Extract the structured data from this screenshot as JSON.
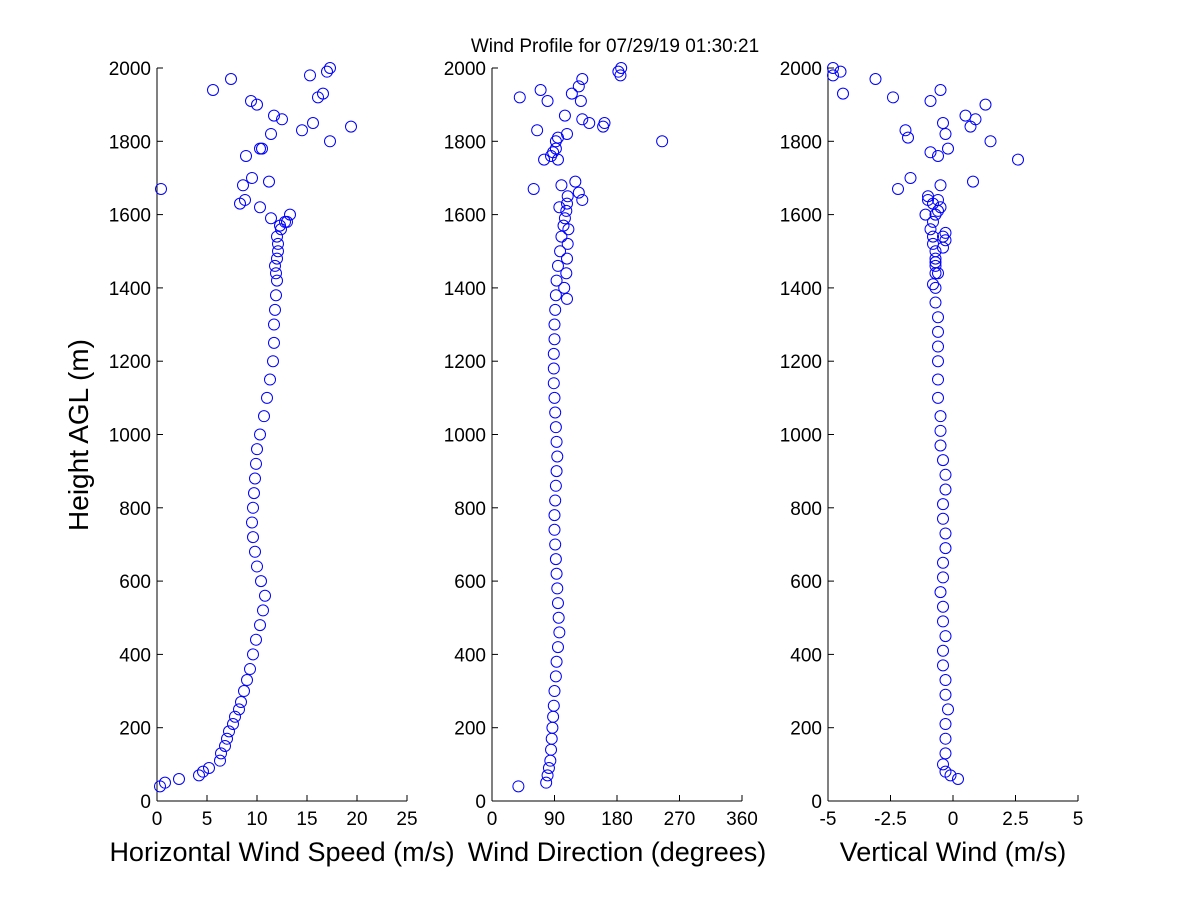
{
  "figure": {
    "title": "Wind Profile for  07/29/19 01:30:21",
    "ylabel": "Height AGL (m)"
  },
  "chart_data": [
    {
      "type": "scatter",
      "xlabel": "Horizontal Wind Speed (m/s)",
      "ylabel": "Height AGL (m)",
      "xlim": [
        0,
        25
      ],
      "ylim": [
        0,
        2000
      ],
      "xticks": [
        "0",
        "5",
        "10",
        "15",
        "20",
        "25"
      ],
      "yticks": [
        "0",
        "200",
        "400",
        "600",
        "800",
        "1000",
        "1200",
        "1400",
        "1600",
        "1800",
        "2000"
      ],
      "marker": "open-circle",
      "color": "#0000ff",
      "x": [
        0.3,
        0.8,
        2.2,
        4.2,
        4.6,
        5.2,
        6.3,
        6.4,
        6.8,
        7.0,
        7.2,
        7.6,
        7.8,
        8.2,
        8.4,
        8.7,
        9.0,
        9.3,
        9.6,
        9.9,
        10.3,
        10.6,
        10.8,
        10.4,
        10.0,
        9.8,
        9.6,
        9.5,
        9.6,
        9.7,
        9.8,
        9.9,
        10.0,
        10.3,
        10.7,
        11.0,
        11.3,
        11.6,
        11.7,
        11.7,
        11.8,
        11.9,
        12.0,
        11.9,
        11.8,
        12.0,
        12.1,
        12.1,
        12.0,
        12.4,
        13.0,
        13.3,
        12.8,
        12.3,
        11.4,
        10.3,
        8.3,
        8.8,
        8.6,
        11.2,
        9.5,
        8.9,
        10.5,
        12.5,
        11.4,
        11.7,
        10.0,
        15.6,
        19.4,
        14.5,
        17.3,
        9.4,
        10.3,
        16.1,
        16.6,
        5.6,
        7.4,
        15.3,
        17.0,
        17.3,
        0.4
      ],
      "y": [
        40,
        50,
        60,
        70,
        80,
        90,
        110,
        130,
        150,
        170,
        190,
        210,
        230,
        250,
        270,
        300,
        330,
        360,
        400,
        440,
        480,
        520,
        560,
        600,
        640,
        680,
        720,
        760,
        800,
        840,
        880,
        920,
        960,
        1000,
        1050,
        1100,
        1150,
        1200,
        1250,
        1300,
        1340,
        1380,
        1420,
        1440,
        1460,
        1480,
        1500,
        1520,
        1540,
        1560,
        1580,
        1600,
        1580,
        1570,
        1590,
        1620,
        1630,
        1640,
        1680,
        1690,
        1700,
        1760,
        1780,
        1860,
        1820,
        1870,
        1900,
        1850,
        1840,
        1830,
        1800,
        1910,
        1780,
        1920,
        1930,
        1940,
        1970,
        1980,
        1990,
        2000,
        1670
      ]
    },
    {
      "type": "scatter",
      "xlabel": "Wind Direction (degrees)",
      "ylabel": "",
      "xlim": [
        0,
        360
      ],
      "ylim": [
        0,
        2000
      ],
      "xticks": [
        "0",
        "90",
        "180",
        "270",
        "360"
      ],
      "yticks": [
        "0",
        "200",
        "400",
        "600",
        "800",
        "1000",
        "1200",
        "1400",
        "1600",
        "1800",
        "2000"
      ],
      "marker": "open-circle",
      "color": "#0000ff",
      "x": [
        38,
        78,
        80,
        82,
        84,
        85,
        86,
        87,
        88,
        89,
        90,
        92,
        93,
        95,
        97,
        96,
        95,
        94,
        93,
        92,
        91,
        90,
        90,
        91,
        92,
        93,
        94,
        93,
        92,
        91,
        90,
        89,
        89,
        89,
        90,
        90,
        91,
        92,
        93,
        95,
        98,
        100,
        103,
        105,
        107,
        108,
        109,
        110,
        109,
        108,
        107,
        104,
        108,
        130,
        125,
        97,
        120,
        60,
        100,
        95,
        65,
        88,
        92,
        108,
        95,
        92,
        140,
        130,
        245,
        128,
        105,
        160,
        80,
        70,
        85,
        162,
        115,
        125,
        130,
        185,
        182,
        186,
        40,
        75
      ],
      "y": [
        40,
        50,
        70,
        90,
        110,
        140,
        170,
        200,
        230,
        260,
        300,
        340,
        380,
        420,
        460,
        500,
        540,
        580,
        620,
        660,
        700,
        740,
        780,
        820,
        860,
        900,
        940,
        980,
        1020,
        1060,
        1100,
        1140,
        1180,
        1220,
        1260,
        1300,
        1340,
        1380,
        1420,
        1460,
        1500,
        1540,
        1570,
        1590,
        1610,
        1630,
        1650,
        1560,
        1520,
        1480,
        1440,
        1400,
        1370,
        1640,
        1660,
        1620,
        1690,
        1670,
        1680,
        1750,
        1830,
        1770,
        1780,
        1820,
        1810,
        1800,
        1850,
        1860,
        1800,
        1910,
        1870,
        1840,
        1910,
        1940,
        1760,
        1850,
        1930,
        1950,
        1970,
        1980,
        1990,
        2000,
        1920,
        1750
      ]
    },
    {
      "type": "scatter",
      "xlabel": "Vertical Wind (m/s)",
      "ylabel": "",
      "xlim": [
        -5,
        5
      ],
      "ylim": [
        0,
        2000
      ],
      "xticks": [
        "-5",
        "-2.5",
        "0",
        "2.5",
        "5"
      ],
      "yticks": [
        "0",
        "200",
        "400",
        "600",
        "800",
        "1000",
        "1200",
        "1400",
        "1600",
        "1800",
        "2000"
      ],
      "marker": "open-circle",
      "color": "#0000ff",
      "x": [
        0.2,
        -0.1,
        -0.3,
        -0.4,
        -0.3,
        -0.3,
        -0.3,
        -0.2,
        -0.3,
        -0.3,
        -0.4,
        -0.4,
        -0.3,
        -0.4,
        -0.4,
        -0.5,
        -0.4,
        -0.4,
        -0.3,
        -0.3,
        -0.4,
        -0.4,
        -0.3,
        -0.3,
        -0.4,
        -0.5,
        -0.5,
        -0.5,
        -0.6,
        -0.6,
        -0.6,
        -0.6,
        -0.6,
        -0.6,
        -0.7,
        -0.7,
        -0.6,
        -0.7,
        -0.7,
        -0.7,
        -0.8,
        -0.8,
        -0.9,
        -0.8,
        -0.7,
        -0.5,
        -0.6,
        -0.3,
        -0.4,
        -1.0,
        -0.8,
        -0.5,
        -0.3,
        -2.2,
        -1.7,
        -0.3,
        -0.6,
        0.8,
        -0.9,
        -1.8,
        -1.9,
        -0.4,
        0.9,
        1.3,
        0.7,
        0.5,
        2.6,
        1.5,
        -0.2,
        -0.9,
        -0.5,
        -3.1,
        -2.4,
        -4.4,
        -4.8,
        -4.5,
        -4.8,
        -0.6,
        -0.4,
        -0.7,
        -0.7,
        -0.8,
        -1.1,
        -1.0
      ],
      "y": [
        60,
        70,
        80,
        100,
        130,
        170,
        210,
        250,
        290,
        330,
        370,
        410,
        450,
        490,
        530,
        570,
        610,
        650,
        690,
        730,
        770,
        810,
        850,
        890,
        930,
        970,
        1010,
        1050,
        1100,
        1150,
        1200,
        1240,
        1280,
        1320,
        1360,
        1400,
        1440,
        1460,
        1480,
        1500,
        1520,
        1540,
        1560,
        1580,
        1600,
        1620,
        1640,
        1530,
        1510,
        1650,
        1630,
        1680,
        1550,
        1670,
        1700,
        1820,
        1760,
        1690,
        1770,
        1810,
        1830,
        1850,
        1860,
        1900,
        1840,
        1870,
        1750,
        1800,
        1780,
        1910,
        1940,
        1970,
        1920,
        1930,
        1980,
        1990,
        2000,
        1610,
        1540,
        1470,
        1440,
        1410,
        1600,
        1640
      ]
    }
  ]
}
